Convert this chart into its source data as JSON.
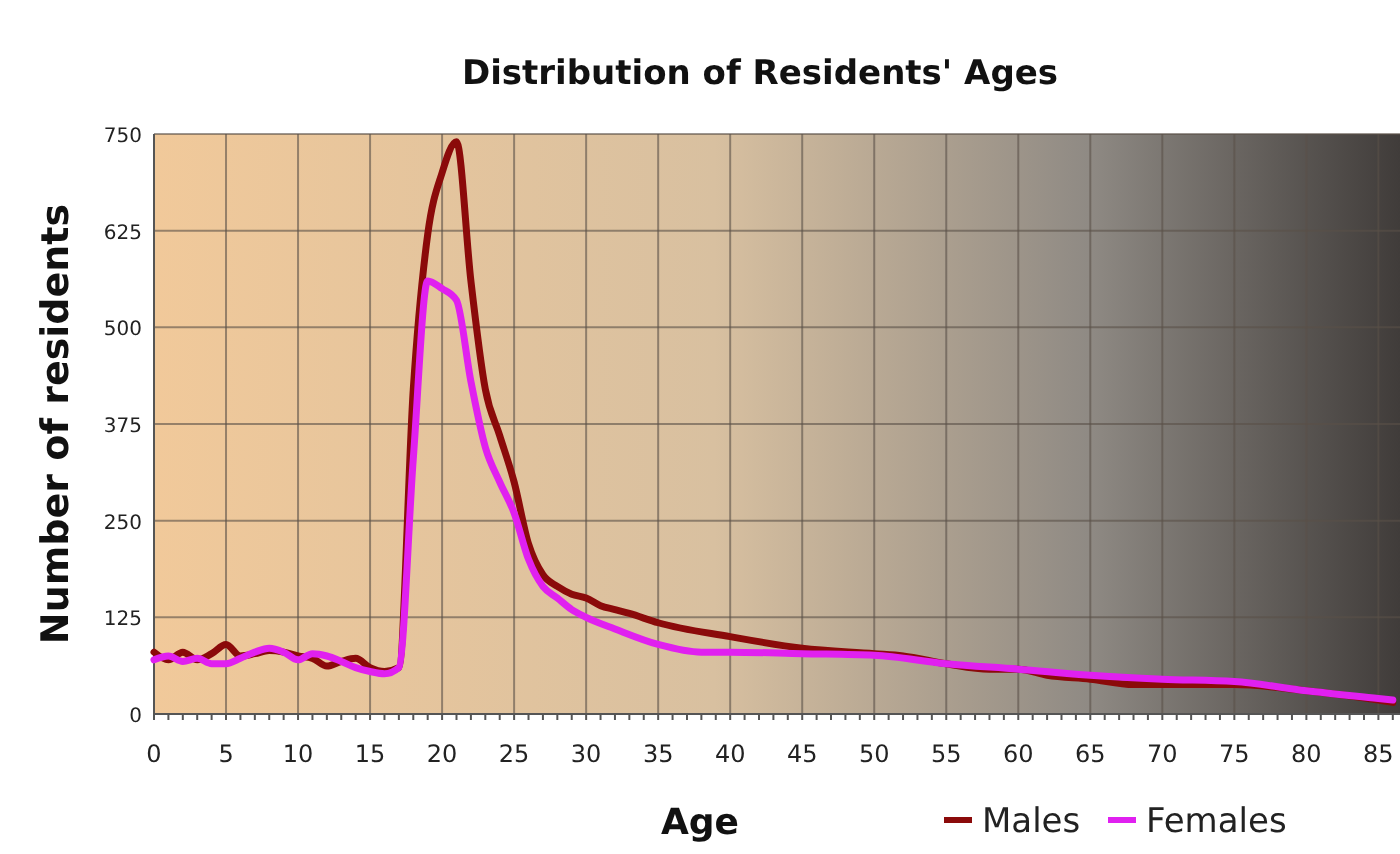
{
  "chart_data": {
    "type": "line",
    "title": "Distribution of Residents' Ages",
    "xlabel": "Age",
    "ylabel": "Number of residents",
    "xlim": [
      0,
      86.5
    ],
    "xticks": [
      0,
      5,
      10,
      15,
      20,
      25,
      30,
      35,
      40,
      45,
      50,
      55,
      60,
      65,
      70,
      75,
      80,
      85
    ],
    "ylim": [
      0,
      750
    ],
    "yticks": [
      0,
      125,
      250,
      375,
      500,
      625,
      750
    ],
    "grid": true,
    "legend": "bottom right",
    "marker": "none",
    "line_style": "solid",
    "series": [
      {
        "name": "Males",
        "color": "#8b0a0a",
        "x": [
          0,
          1,
          2,
          3,
          4,
          5,
          6,
          7,
          8,
          9,
          10,
          11,
          12,
          13,
          14,
          15,
          16,
          17,
          18,
          19,
          20,
          21,
          22,
          23,
          24,
          25,
          26,
          27,
          28,
          29,
          30,
          31,
          32,
          33,
          35,
          40,
          45,
          50,
          52,
          55,
          58,
          60,
          62,
          65,
          68,
          70,
          75,
          80,
          85,
          86
        ],
        "values": [
          80,
          70,
          80,
          70,
          78,
          90,
          75,
          78,
          82,
          80,
          75,
          72,
          62,
          68,
          72,
          60,
          55,
          60,
          420,
          620,
          700,
          740,
          560,
          420,
          360,
          300,
          220,
          180,
          165,
          155,
          150,
          140,
          135,
          130,
          118,
          100,
          85,
          78,
          75,
          65,
          58,
          58,
          50,
          45,
          38,
          38,
          38,
          30,
          18,
          15
        ]
      },
      {
        "name": "Females",
        "color": "#e020f0",
        "x": [
          0,
          1,
          2,
          3,
          4,
          5,
          6,
          7,
          8,
          9,
          10,
          11,
          12,
          13,
          14,
          15,
          16,
          17,
          18,
          19,
          20,
          21,
          22,
          23,
          24,
          25,
          26,
          27,
          28,
          29,
          30,
          32,
          35,
          38,
          40,
          45,
          50,
          55,
          60,
          65,
          70,
          75,
          80,
          85,
          86
        ],
        "values": [
          70,
          75,
          68,
          72,
          65,
          65,
          72,
          80,
          85,
          80,
          70,
          78,
          75,
          68,
          60,
          55,
          52,
          60,
          330,
          560,
          550,
          535,
          430,
          345,
          300,
          260,
          200,
          165,
          150,
          135,
          125,
          110,
          90,
          80,
          80,
          78,
          76,
          65,
          58,
          50,
          45,
          42,
          30,
          20,
          18
        ]
      }
    ]
  }
}
